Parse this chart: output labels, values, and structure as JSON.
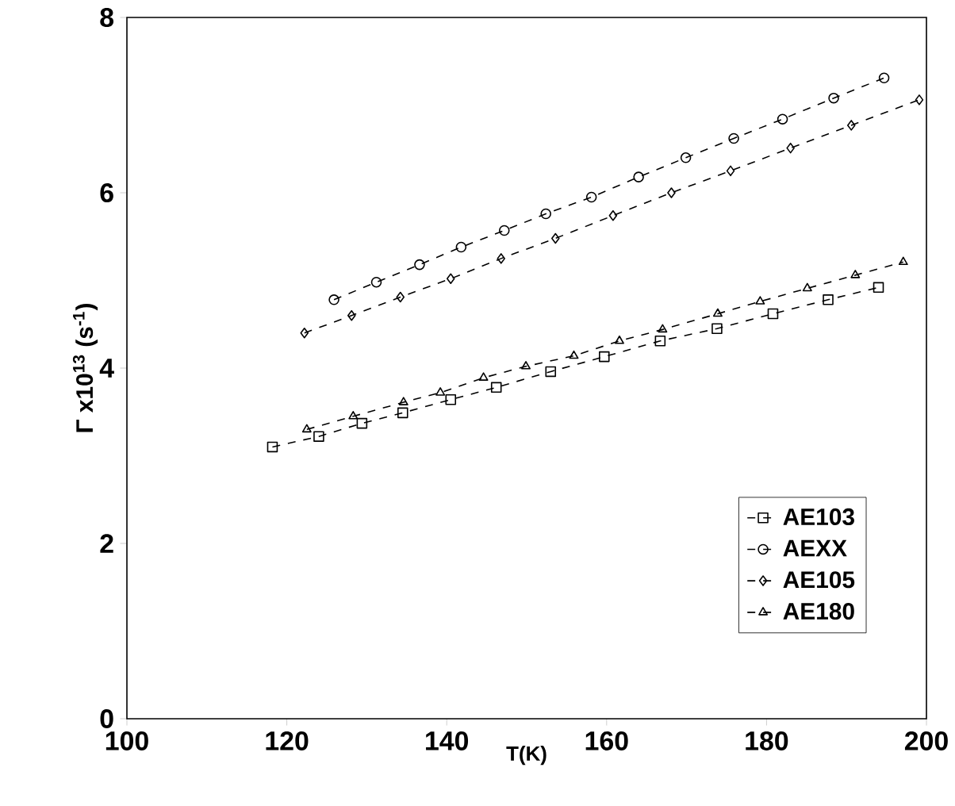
{
  "chart_data": {
    "type": "line",
    "xlabel": "T(K)",
    "ylabel": "Γ x10$^{13}$ (s$^{-1}$)",
    "xlim": [
      100,
      200
    ],
    "ylim": [
      0,
      8
    ],
    "xticks": [
      100,
      120,
      140,
      160,
      180,
      200
    ],
    "yticks": [
      0,
      2,
      4,
      6,
      8
    ],
    "grid": false,
    "legend": "bottom right",
    "line_style": "dashed",
    "series": [
      {
        "name": "AE103",
        "color": "#000000",
        "marker": "square",
        "x": [
          118.2,
          124.0,
          129.4,
          134.5,
          140.5,
          146.2,
          153.0,
          159.7,
          166.7,
          173.8,
          180.8,
          187.7,
          194.0
        ],
        "values": [
          3.1,
          3.22,
          3.37,
          3.49,
          3.64,
          3.78,
          3.96,
          4.13,
          4.31,
          4.45,
          4.62,
          4.78,
          4.92
        ]
      },
      {
        "name": "AEXX",
        "color": "#000000",
        "marker": "circle",
        "x": [
          125.9,
          131.2,
          136.6,
          141.8,
          147.2,
          152.4,
          158.1,
          164.0,
          169.9,
          175.9,
          182.0,
          188.4,
          194.7
        ],
        "values": [
          4.78,
          4.98,
          5.18,
          5.38,
          5.57,
          5.76,
          5.95,
          6.18,
          6.4,
          6.62,
          6.84,
          7.08,
          7.31
        ]
      },
      {
        "name": "AE105",
        "color": "#000000",
        "marker": "diamond",
        "x": [
          122.2,
          128.1,
          134.2,
          140.5,
          146.8,
          153.6,
          160.8,
          168.1,
          175.5,
          183.0,
          190.6,
          199.1
        ],
        "values": [
          4.4,
          4.6,
          4.81,
          5.02,
          5.25,
          5.48,
          5.74,
          6.0,
          6.25,
          6.51,
          6.77,
          7.06
        ]
      },
      {
        "name": "AE180",
        "color": "#000000",
        "marker": "triangle",
        "x": [
          122.5,
          128.3,
          134.6,
          139.2,
          144.6,
          149.9,
          155.9,
          161.6,
          167.0,
          173.9,
          179.2,
          185.1,
          191.1,
          197.1
        ],
        "values": [
          3.3,
          3.45,
          3.61,
          3.72,
          3.89,
          4.02,
          4.14,
          4.31,
          4.44,
          4.62,
          4.76,
          4.91,
          5.06,
          5.21
        ]
      }
    ]
  }
}
